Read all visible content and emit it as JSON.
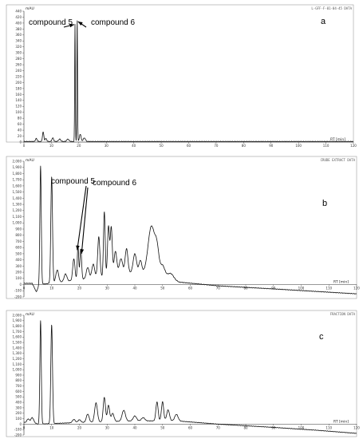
{
  "chart_data": [
    {
      "type": "line",
      "panel_label": "a",
      "header_text": "L-GFF-F-01-04-45 DATA",
      "ylabel": "mAU",
      "xlabel": "RT [min]",
      "xlim": [
        0,
        120
      ],
      "ylim": [
        0,
        440
      ],
      "xticks": [
        0,
        10,
        20,
        30,
        40,
        50,
        60,
        70,
        80,
        90,
        100,
        110,
        120
      ],
      "yticks": [
        0,
        20,
        40,
        60,
        80,
        100,
        120,
        140,
        160,
        180,
        200,
        220,
        240,
        260,
        280,
        300,
        320,
        340,
        360,
        380,
        400,
        420,
        440
      ],
      "ytick_labels": [
        "0",
        "20",
        "40",
        "60",
        "80",
        "100",
        "120",
        "140",
        "160",
        "180",
        "200",
        "220",
        "240",
        "260",
        "280",
        "300",
        "320",
        "340",
        "360",
        "380",
        "400",
        "420",
        "440"
      ],
      "baseline": 2,
      "peaks": [
        [
          4.5,
          10,
          0.3
        ],
        [
          7,
          32,
          0.25
        ],
        [
          8,
          10,
          0.3
        ],
        [
          10.5,
          12,
          0.3
        ],
        [
          13,
          8,
          0.4
        ],
        [
          16,
          8,
          0.4
        ],
        [
          18.6,
          395,
          0.12
        ],
        [
          19.4,
          415,
          0.12
        ],
        [
          20.5,
          25,
          0.3
        ],
        [
          22,
          12,
          0.4
        ]
      ],
      "annotations": [
        {
          "text": "compound 5",
          "x": 18.6,
          "y": 395,
          "text_x": 10,
          "text_y": 372
        },
        {
          "text": "compound 6",
          "x": 19.4,
          "y": 405,
          "text_x": 30,
          "text_y": 372
        }
      ]
    },
    {
      "type": "line",
      "panel_label": "b",
      "header_text": "CRUDE EXTRACT DATA",
      "ylabel": "mAU",
      "xlabel": "RT [min]",
      "xlim": [
        0,
        120
      ],
      "ylim": [
        -200,
        2000
      ],
      "xticks": [
        0,
        10,
        20,
        30,
        40,
        50,
        60,
        70,
        80,
        90,
        100,
        110,
        120
      ],
      "yticks": [
        -200,
        -100,
        0,
        100,
        200,
        300,
        400,
        500,
        600,
        700,
        800,
        900,
        1000,
        1100,
        1200,
        1300,
        1400,
        1500,
        1600,
        1700,
        1800,
        1900,
        2000
      ],
      "ytick_labels": [
        "-200",
        "-100",
        "0",
        "100",
        "200",
        "300",
        "400",
        "500",
        "600",
        "700",
        "800",
        "900",
        "1,000",
        "1,100",
        "1,200",
        "1,300",
        "1,400",
        "1,500",
        "1,600",
        "1,700",
        "1,800",
        "1,900",
        "2,000"
      ],
      "baseline": 20,
      "drift": [
        [
          0,
          20
        ],
        [
          3,
          20
        ],
        [
          4.5,
          -120
        ],
        [
          5.5,
          0
        ],
        [
          20,
          80
        ],
        [
          40,
          200
        ],
        [
          50,
          160
        ],
        [
          56,
          40
        ],
        [
          70,
          -20
        ],
        [
          90,
          -70
        ],
        [
          105,
          -110
        ],
        [
          120,
          -150
        ]
      ],
      "peaks": [
        [
          6,
          1920,
          0.25
        ],
        [
          10,
          1730,
          0.3
        ],
        [
          12,
          200,
          0.5
        ],
        [
          15,
          120,
          0.5
        ],
        [
          18,
          350,
          0.4
        ],
        [
          19.5,
          560,
          0.25
        ],
        [
          20.5,
          500,
          0.3
        ],
        [
          23,
          180,
          0.5
        ],
        [
          25,
          220,
          0.5
        ],
        [
          27,
          650,
          0.4
        ],
        [
          29,
          1050,
          0.3
        ],
        [
          30.5,
          800,
          0.35
        ],
        [
          31.5,
          780,
          0.35
        ],
        [
          33,
          380,
          0.5
        ],
        [
          35,
          250,
          0.6
        ],
        [
          37,
          400,
          0.5
        ],
        [
          40,
          300,
          0.6
        ],
        [
          42,
          200,
          0.5
        ],
        [
          46,
          770,
          1.2
        ],
        [
          48,
          350,
          0.7
        ],
        [
          50,
          150,
          0.8
        ],
        [
          53,
          80,
          1.0
        ]
      ],
      "annotations": [
        {
          "text": "compound 5",
          "x": 19.5,
          "y": 560,
          "text_x": 8,
          "text_y": 1530
        },
        {
          "text": "compound 6",
          "x": 20.5,
          "y": 500,
          "text_x": 27,
          "text_y": 1420
        }
      ]
    },
    {
      "type": "line",
      "panel_label": "c",
      "header_text": "FRACTION DATA",
      "ylabel": "mAU",
      "xlabel": "RT [min]",
      "xlim": [
        0,
        120
      ],
      "ylim": [
        -200,
        2000
      ],
      "xticks": [
        0,
        10,
        20,
        30,
        40,
        50,
        60,
        70,
        80,
        90,
        100,
        110,
        120
      ],
      "yticks": [
        -200,
        -100,
        0,
        100,
        200,
        300,
        400,
        500,
        600,
        700,
        800,
        900,
        1000,
        1100,
        1200,
        1300,
        1400,
        1500,
        1600,
        1700,
        1800,
        1900,
        2000
      ],
      "ytick_labels": [
        "-200",
        "-100",
        "0",
        "100",
        "200",
        "300",
        "400",
        "500",
        "600",
        "700",
        "800",
        "900",
        "1,000",
        "1,100",
        "1,200",
        "1,300",
        "1,400",
        "1,500",
        "1,600",
        "1,700",
        "1,800",
        "1,900",
        "2,000"
      ],
      "baseline": 30,
      "drift": [
        [
          0,
          30
        ],
        [
          3,
          40
        ],
        [
          5,
          0
        ],
        [
          20,
          30
        ],
        [
          40,
          60
        ],
        [
          55,
          60
        ],
        [
          70,
          0
        ],
        [
          90,
          -60
        ],
        [
          105,
          -110
        ],
        [
          120,
          -170
        ]
      ],
      "peaks": [
        [
          1.5,
          60,
          0.4
        ],
        [
          3,
          80,
          0.5
        ],
        [
          6,
          1900,
          0.25
        ],
        [
          10,
          1820,
          0.3
        ],
        [
          18,
          60,
          0.5
        ],
        [
          20,
          50,
          0.5
        ],
        [
          23,
          150,
          0.5
        ],
        [
          26,
          350,
          0.5
        ],
        [
          29,
          450,
          0.4
        ],
        [
          30.5,
          300,
          0.4
        ],
        [
          32,
          150,
          0.5
        ],
        [
          36,
          200,
          0.6
        ],
        [
          40,
          90,
          0.6
        ],
        [
          43,
          60,
          0.6
        ],
        [
          48,
          350,
          0.4
        ],
        [
          50,
          350,
          0.4
        ],
        [
          52,
          200,
          0.5
        ],
        [
          55,
          120,
          0.6
        ]
      ]
    }
  ]
}
